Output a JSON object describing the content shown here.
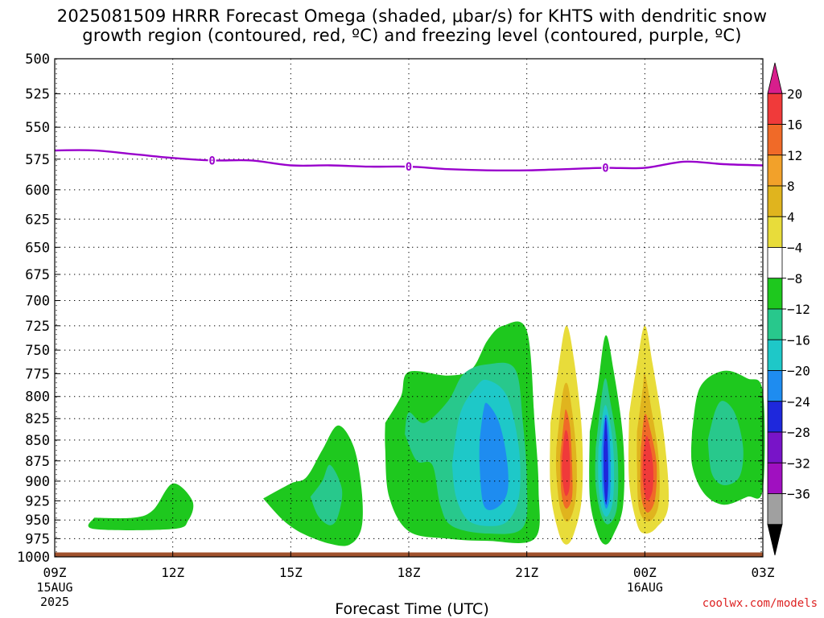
{
  "title_line1": "2025081509 HRRR Forecast Omega (shaded, μbar/s) for KHTS with dendritic snow",
  "title_line2": "growth region (contoured, red, ºC) and freezing level (contoured, purple, ºC)",
  "credit": "coolwx.com/models",
  "chart_data": {
    "type": "contour",
    "xlabel": "Forecast Time (UTC)",
    "ylabel": "",
    "x_ticks": [
      {
        "label": "09Z",
        "sub": [
          "15AUG",
          "2025"
        ],
        "hour": 9
      },
      {
        "label": "12Z",
        "sub": [],
        "hour": 12
      },
      {
        "label": "15Z",
        "sub": [],
        "hour": 15
      },
      {
        "label": "18Z",
        "sub": [],
        "hour": 18
      },
      {
        "label": "21Z",
        "sub": [],
        "hour": 21
      },
      {
        "label": "00Z",
        "sub": [
          "16AUG"
        ],
        "hour": 24
      },
      {
        "label": "03Z",
        "sub": [],
        "hour": 27
      }
    ],
    "xlim_hours": [
      9,
      27
    ],
    "y_ticks": [
      500,
      525,
      550,
      575,
      600,
      625,
      650,
      675,
      700,
      725,
      750,
      775,
      800,
      825,
      850,
      875,
      900,
      925,
      950,
      975,
      1000
    ],
    "ylim_hPa": [
      500,
      1000
    ],
    "y_scale": "log-pressure",
    "grid": "dotted",
    "colorbar": {
      "labels": [
        "20",
        "16",
        "12",
        "8",
        "4",
        "−4",
        "−8",
        "−12",
        "−16",
        "−20",
        "−24",
        "−28",
        "−32",
        "−36"
      ],
      "colors": [
        "#d81e8c",
        "#f03a3a",
        "#f06a28",
        "#f2a12a",
        "#e0b41e",
        "#e8dc3a",
        "#ffffff",
        "#1ec81e",
        "#28c88c",
        "#1ec8c8",
        "#1e8cf0",
        "#1e28dc",
        "#7814c8",
        "#a010c0",
        "#a0a0a0",
        "#000000"
      ]
    },
    "freezing_level": {
      "color": "#9900cc",
      "label": "0",
      "label_hours": [
        13,
        18,
        23
      ],
      "points": [
        [
          9,
          568
        ],
        [
          10,
          568
        ],
        [
          11,
          571
        ],
        [
          12,
          574
        ],
        [
          13,
          576
        ],
        [
          14,
          576
        ],
        [
          15,
          580
        ],
        [
          16,
          580
        ],
        [
          17,
          581
        ],
        [
          18,
          581
        ],
        [
          19,
          583
        ],
        [
          20,
          584
        ],
        [
          21,
          584
        ],
        [
          22,
          583
        ],
        [
          23,
          582
        ],
        [
          24,
          582
        ],
        [
          25,
          577
        ],
        [
          26,
          579
        ],
        [
          27,
          580
        ]
      ]
    },
    "ground": {
      "color": "#a0522d",
      "pressure_hPa": 995
    },
    "omega_regions": [
      {
        "level": "-4",
        "color": "#1ec81e",
        "points": [
          [
            10,
            947
          ],
          [
            11,
            947
          ],
          [
            11.5,
            937
          ],
          [
            12,
            903
          ],
          [
            12.5,
            925
          ],
          [
            12.4,
            950
          ],
          [
            12,
            962
          ],
          [
            10,
            962
          ],
          [
            10,
            947
          ]
        ]
      },
      {
        "level": "-4",
        "color": "#1ec81e",
        "points": [
          [
            14.3,
            922
          ],
          [
            15,
            903
          ],
          [
            15.4,
            895
          ],
          [
            15.8,
            862
          ],
          [
            16.2,
            833
          ],
          [
            16.6,
            858
          ],
          [
            16.8,
            910
          ],
          [
            16.8,
            960
          ],
          [
            16.5,
            983
          ],
          [
            16,
            982
          ],
          [
            15.3,
            968
          ],
          [
            14.8,
            950
          ],
          [
            14.3,
            922
          ]
        ]
      },
      {
        "level": "-8",
        "color": "#28c88c",
        "points": [
          [
            15.5,
            920
          ],
          [
            15.8,
            900
          ],
          [
            16,
            880
          ],
          [
            16.3,
            910
          ],
          [
            16.2,
            945
          ],
          [
            16,
            957
          ],
          [
            15.7,
            945
          ],
          [
            15.5,
            920
          ]
        ]
      },
      {
        "level": "-4",
        "color": "#1ec81e",
        "points": [
          [
            17.4,
            830
          ],
          [
            17.8,
            800
          ],
          [
            18,
            773
          ],
          [
            19,
            777
          ],
          [
            19.6,
            770
          ],
          [
            20,
            740
          ],
          [
            20.4,
            725
          ],
          [
            21,
            730
          ],
          [
            21.2,
            830
          ],
          [
            21.3,
            910
          ],
          [
            21.2,
            975
          ],
          [
            20,
            978
          ],
          [
            19,
            975
          ],
          [
            18,
            965
          ],
          [
            17.5,
            920
          ],
          [
            17.4,
            860
          ],
          [
            17.4,
            830
          ]
        ]
      },
      {
        "level": "-8",
        "color": "#28c88c",
        "points": [
          [
            17.9,
            843
          ],
          [
            18,
            818
          ],
          [
            18.4,
            830
          ],
          [
            19,
            805
          ],
          [
            19.4,
            775
          ],
          [
            20,
            765
          ],
          [
            20.7,
            770
          ],
          [
            20.9,
            830
          ],
          [
            21,
            900
          ],
          [
            20.9,
            960
          ],
          [
            20,
            968
          ],
          [
            19.1,
            958
          ],
          [
            18.8,
            930
          ],
          [
            18.6,
            880
          ],
          [
            18.2,
            875
          ],
          [
            17.9,
            843
          ]
        ]
      },
      {
        "level": "-12",
        "color": "#1ec8c8",
        "points": [
          [
            19.1,
            880
          ],
          [
            19.3,
            820
          ],
          [
            19.7,
            790
          ],
          [
            20,
            782
          ],
          [
            20.5,
            800
          ],
          [
            20.8,
            860
          ],
          [
            20.8,
            920
          ],
          [
            20.5,
            952
          ],
          [
            20,
            958
          ],
          [
            19.5,
            950
          ],
          [
            19.2,
            920
          ],
          [
            19.1,
            880
          ]
        ]
      },
      {
        "level": "-16",
        "color": "#1e8cf0",
        "points": [
          [
            19.8,
            850
          ],
          [
            19.9,
            815
          ],
          [
            20,
            808
          ],
          [
            20.3,
            830
          ],
          [
            20.5,
            875
          ],
          [
            20.5,
            915
          ],
          [
            20.2,
            935
          ],
          [
            19.9,
            930
          ],
          [
            19.8,
            880
          ],
          [
            19.8,
            850
          ]
        ]
      },
      {
        "level": "4",
        "color": "#e8dc3a",
        "points": [
          [
            21.6,
            830
          ],
          [
            21.8,
            770
          ],
          [
            22,
            725
          ],
          [
            22.2,
            760
          ],
          [
            22.4,
            840
          ],
          [
            22.4,
            920
          ],
          [
            22.2,
            968
          ],
          [
            22,
            983
          ],
          [
            21.8,
            965
          ],
          [
            21.6,
            910
          ],
          [
            21.6,
            830
          ]
        ]
      },
      {
        "level": "8",
        "color": "#e0b41e",
        "points": [
          [
            21.75,
            860
          ],
          [
            21.9,
            800
          ],
          [
            22,
            785
          ],
          [
            22.1,
            800
          ],
          [
            22.25,
            860
          ],
          [
            22.25,
            920
          ],
          [
            22.05,
            952
          ],
          [
            21.85,
            935
          ],
          [
            21.75,
            890
          ],
          [
            21.75,
            860
          ]
        ]
      },
      {
        "level": "12",
        "color": "#f06a28",
        "points": [
          [
            21.85,
            870
          ],
          [
            21.95,
            825
          ],
          [
            22,
            815
          ],
          [
            22.1,
            835
          ],
          [
            22.15,
            880
          ],
          [
            22.15,
            920
          ],
          [
            22.0,
            935
          ],
          [
            21.88,
            915
          ],
          [
            21.85,
            870
          ]
        ]
      },
      {
        "level": "16",
        "color": "#f03a3a",
        "points": [
          [
            21.9,
            870
          ],
          [
            21.97,
            840
          ],
          [
            22.05,
            845
          ],
          [
            22.1,
            880
          ],
          [
            22.08,
            910
          ],
          [
            21.98,
            918
          ],
          [
            21.9,
            895
          ],
          [
            21.9,
            870
          ]
        ]
      },
      {
        "level": "-4",
        "color": "#1ec81e",
        "points": [
          [
            22.6,
            840
          ],
          [
            22.8,
            790
          ],
          [
            23,
            735
          ],
          [
            23.2,
            770
          ],
          [
            23.45,
            850
          ],
          [
            23.45,
            930
          ],
          [
            23.2,
            970
          ],
          [
            23,
            983
          ],
          [
            22.8,
            968
          ],
          [
            22.6,
            920
          ],
          [
            22.6,
            840
          ]
        ]
      },
      {
        "level": "-8",
        "color": "#28c88c",
        "points": [
          [
            22.75,
            860
          ],
          [
            22.9,
            800
          ],
          [
            23,
            780
          ],
          [
            23.1,
            800
          ],
          [
            23.3,
            860
          ],
          [
            23.3,
            930
          ],
          [
            23.1,
            955
          ],
          [
            22.9,
            945
          ],
          [
            22.75,
            905
          ],
          [
            22.75,
            860
          ]
        ]
      },
      {
        "level": "-12",
        "color": "#1ec8c8",
        "points": [
          [
            22.82,
            860
          ],
          [
            22.95,
            815
          ],
          [
            23.05,
            815
          ],
          [
            23.2,
            860
          ],
          [
            23.2,
            920
          ],
          [
            23.05,
            945
          ],
          [
            22.9,
            935
          ],
          [
            22.82,
            900
          ],
          [
            22.82,
            860
          ]
        ]
      },
      {
        "level": "-16",
        "color": "#1e8cf0",
        "points": [
          [
            22.9,
            860
          ],
          [
            22.97,
            825
          ],
          [
            23.05,
            825
          ],
          [
            23.12,
            860
          ],
          [
            23.12,
            915
          ],
          [
            23.02,
            935
          ],
          [
            22.93,
            915
          ],
          [
            22.9,
            880
          ],
          [
            22.9,
            860
          ]
        ]
      },
      {
        "level": "-20",
        "color": "#1e28dc",
        "points": [
          [
            22.95,
            860
          ],
          [
            23.0,
            825
          ],
          [
            23.05,
            845
          ],
          [
            23.07,
            900
          ],
          [
            23.02,
            930
          ],
          [
            22.96,
            905
          ],
          [
            22.95,
            860
          ]
        ]
      },
      {
        "level": "4",
        "color": "#e8dc3a",
        "points": [
          [
            23.6,
            820
          ],
          [
            23.8,
            765
          ],
          [
            24,
            725
          ],
          [
            24.2,
            765
          ],
          [
            24.5,
            850
          ],
          [
            24.6,
            930
          ],
          [
            24.3,
            960
          ],
          [
            24,
            968
          ],
          [
            23.8,
            955
          ],
          [
            23.6,
            900
          ],
          [
            23.6,
            820
          ]
        ]
      },
      {
        "level": "8",
        "color": "#e0b41e",
        "points": [
          [
            23.8,
            840
          ],
          [
            23.95,
            790
          ],
          [
            24,
            775
          ],
          [
            24.15,
            810
          ],
          [
            24.35,
            870
          ],
          [
            24.35,
            930
          ],
          [
            24.1,
            952
          ],
          [
            23.85,
            935
          ],
          [
            23.8,
            880
          ],
          [
            23.8,
            840
          ]
        ]
      },
      {
        "level": "12",
        "color": "#f06a28",
        "points": [
          [
            23.9,
            860
          ],
          [
            24,
            820
          ],
          [
            24.15,
            840
          ],
          [
            24.3,
            880
          ],
          [
            24.25,
            925
          ],
          [
            24.05,
            940
          ],
          [
            23.9,
            915
          ],
          [
            23.9,
            860
          ]
        ]
      },
      {
        "level": "16",
        "color": "#f03a3a",
        "points": [
          [
            23.95,
            870
          ],
          [
            24.05,
            845
          ],
          [
            24.2,
            875
          ],
          [
            24.2,
            910
          ],
          [
            24.05,
            925
          ],
          [
            23.95,
            900
          ],
          [
            23.95,
            870
          ]
        ]
      },
      {
        "level": "-4",
        "color": "#1ec81e",
        "points": [
          [
            25.2,
            840
          ],
          [
            25.4,
            790
          ],
          [
            26,
            772
          ],
          [
            26.6,
            780
          ],
          [
            27,
            795
          ],
          [
            27,
            910
          ],
          [
            26.6,
            920
          ],
          [
            26,
            930
          ],
          [
            25.5,
            915
          ],
          [
            25.2,
            880
          ],
          [
            25.2,
            840
          ]
        ]
      },
      {
        "level": "-8",
        "color": "#28c88c",
        "points": [
          [
            25.6,
            850
          ],
          [
            25.8,
            815
          ],
          [
            26,
            805
          ],
          [
            26.3,
            820
          ],
          [
            26.5,
            860
          ],
          [
            26.4,
            895
          ],
          [
            26,
            905
          ],
          [
            25.7,
            890
          ],
          [
            25.6,
            850
          ]
        ]
      }
    ]
  }
}
